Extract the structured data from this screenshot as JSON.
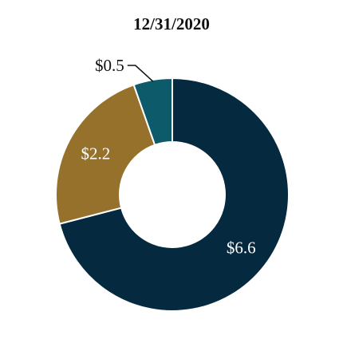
{
  "chart_data": {
    "type": "pie",
    "variant": "donut",
    "title": "12/31/2020",
    "slices": [
      {
        "label": "$6.6",
        "value": 6.6,
        "color": "#052a40",
        "label_color": "#ffffff"
      },
      {
        "label": "$2.2",
        "value": 2.2,
        "color": "#96712c",
        "label_color": "#ffffff"
      },
      {
        "label": "$0.5",
        "value": 0.5,
        "color": "#0d5b6a",
        "label_color": "#111111"
      }
    ]
  }
}
